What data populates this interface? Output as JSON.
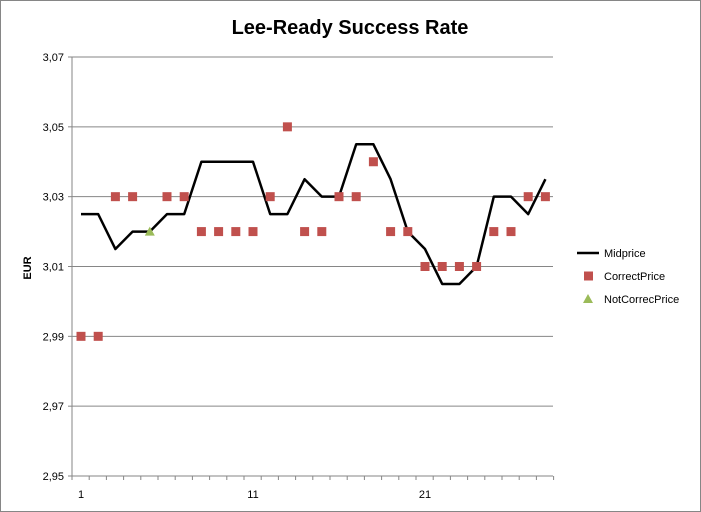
{
  "chart_data": {
    "type": "line",
    "title": "Lee-Ready Success Rate",
    "xlabel": "",
    "ylabel": "EUR",
    "ylim": [
      2.95,
      3.07
    ],
    "xlim": [
      1,
      28
    ],
    "y_ticks": [
      "2,95",
      "2,97",
      "2,99",
      "3,01",
      "3,03",
      "3,05",
      "3,07"
    ],
    "x_ticks": [
      "1",
      "11",
      "21"
    ],
    "grid": "horizontal",
    "legend_position": "right",
    "colors": {
      "Midprice": "#000000",
      "CorrectPrice": "#c0504d",
      "NotCorrecPrice": "#9bbb59"
    },
    "series": [
      {
        "name": "Midprice",
        "marker": "none",
        "x": [
          1,
          2,
          3,
          4,
          5,
          6,
          7,
          8,
          9,
          10,
          11,
          12,
          13,
          14,
          15,
          16,
          17,
          18,
          19,
          20,
          21,
          22,
          23,
          24,
          25,
          26,
          27,
          28
        ],
        "values": [
          3.025,
          3.025,
          3.015,
          3.02,
          3.02,
          3.025,
          3.025,
          3.04,
          3.04,
          3.04,
          3.04,
          3.025,
          3.025,
          3.035,
          3.03,
          3.03,
          3.045,
          3.045,
          3.035,
          3.02,
          3.015,
          3.005,
          3.005,
          3.01,
          3.03,
          3.03,
          3.025,
          3.035
        ]
      },
      {
        "name": "CorrectPrice",
        "marker": "square",
        "x": [
          1,
          2,
          3,
          4,
          6,
          7,
          8,
          9,
          10,
          11,
          12,
          13,
          14,
          15,
          16,
          17,
          18,
          19,
          20,
          21,
          22,
          23,
          24,
          25,
          26,
          27,
          28
        ],
        "values": [
          2.99,
          2.99,
          3.03,
          3.03,
          3.03,
          3.03,
          3.02,
          3.02,
          3.02,
          3.02,
          3.03,
          3.05,
          3.02,
          3.02,
          3.03,
          3.03,
          3.04,
          3.02,
          3.02,
          3.01,
          3.01,
          3.01,
          3.01,
          3.02,
          3.02,
          3.03,
          3.03
        ]
      },
      {
        "name": "NotCorrecPrice",
        "marker": "triangle",
        "x": [
          5
        ],
        "values": [
          3.02
        ]
      }
    ]
  }
}
